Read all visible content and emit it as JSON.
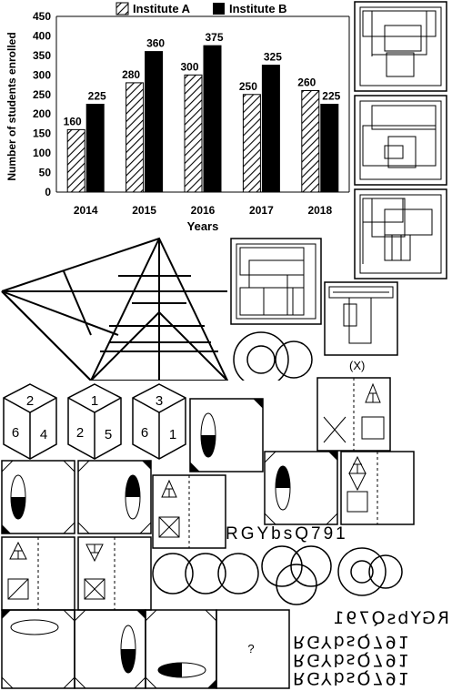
{
  "chart_data": {
    "type": "bar",
    "categories": [
      "2014",
      "2015",
      "2016",
      "2017",
      "2018"
    ],
    "series": [
      {
        "name": "Institute A",
        "values": [
          160,
          280,
          300,
          250,
          260
        ],
        "pattern": "hatched"
      },
      {
        "name": "Institute B",
        "values": [
          225,
          360,
          375,
          325,
          225
        ],
        "pattern": "solid"
      }
    ],
    "xlabel": "Years",
    "ylabel": "Number of students enrolled",
    "ylim": [
      0,
      450
    ],
    "yticks": [
      0,
      50,
      100,
      150,
      200,
      250,
      300,
      350,
      400,
      450
    ],
    "legend_position": "top",
    "grid": false,
    "colors": {
      "A": "#ffffff",
      "B": "#000000"
    }
  },
  "figures": {
    "x_label": "(X)",
    "question_mark": "?",
    "text_strip": "RGYbsQ791",
    "mirror_options": [
      "RGYbsQ791",
      "RGYbsQ791",
      "RGYbsQ791",
      "RGYbsQ791"
    ],
    "dice": [
      {
        "top": "2",
        "left": "6",
        "right": "4"
      },
      {
        "top": "1",
        "left": "2",
        "right": "5"
      },
      {
        "top": "3",
        "left": "6",
        "right": "1"
      }
    ]
  }
}
